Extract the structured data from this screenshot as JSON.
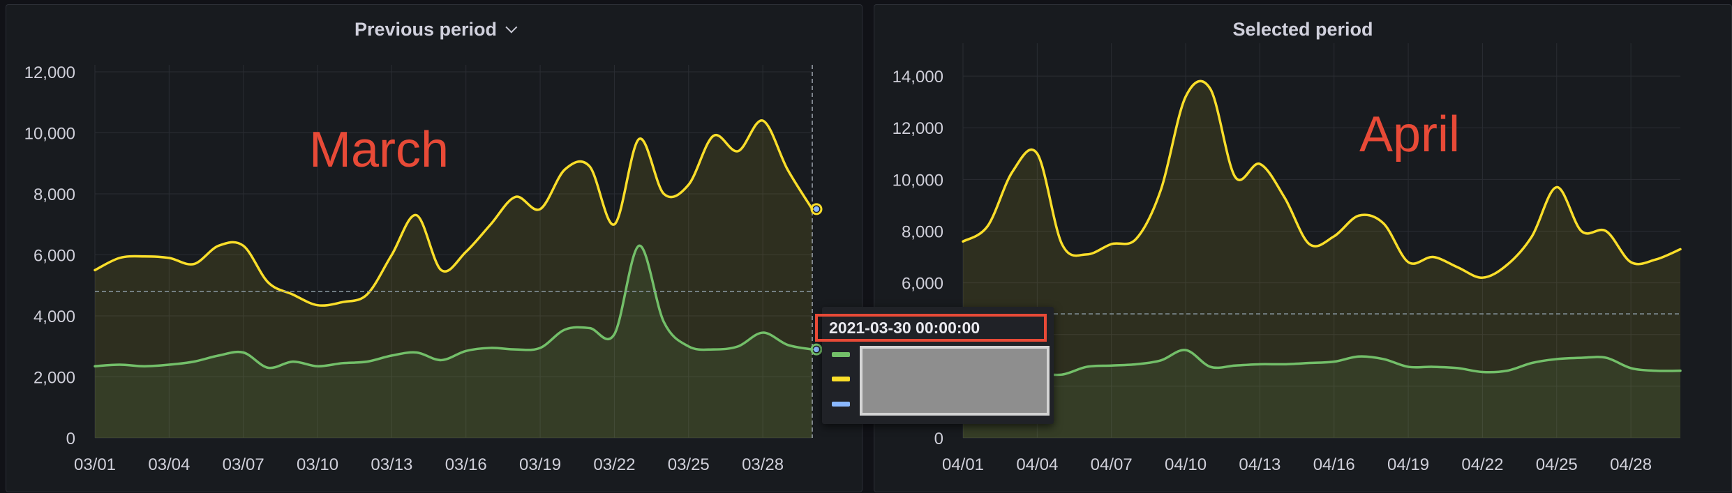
{
  "panels": {
    "left": {
      "title": "Previous period",
      "annotation": "March"
    },
    "right": {
      "title": "Selected period",
      "annotation": "April"
    }
  },
  "tooltip": {
    "time": "2021-03-30 00:00:00",
    "series_colors": [
      "#73bf69",
      "#fade2a",
      "#8ab8ff"
    ]
  },
  "chart_data": [
    {
      "type": "area",
      "title": "Previous period",
      "xlabel": "",
      "ylabel": "",
      "x": [
        "03/01",
        "03/02",
        "03/03",
        "03/04",
        "03/05",
        "03/06",
        "03/07",
        "03/08",
        "03/09",
        "03/10",
        "03/11",
        "03/12",
        "03/13",
        "03/14",
        "03/15",
        "03/16",
        "03/17",
        "03/18",
        "03/19",
        "03/20",
        "03/21",
        "03/22",
        "03/23",
        "03/24",
        "03/25",
        "03/26",
        "03/27",
        "03/28",
        "03/29",
        "03/30"
      ],
      "xticks": [
        "03/01",
        "03/04",
        "03/07",
        "03/10",
        "03/13",
        "03/16",
        "03/19",
        "03/22",
        "03/25",
        "03/28"
      ],
      "yticks": [
        "0",
        "2,000",
        "4,000",
        "6,000",
        "8,000",
        "10,000",
        "12,000"
      ],
      "ylim": [
        0,
        12000
      ],
      "threshold": 4800,
      "series": [
        {
          "color": "#fade2a",
          "values": [
            5500,
            5900,
            5950,
            5900,
            5700,
            6300,
            6300,
            5100,
            4700,
            4350,
            4450,
            4700,
            6000,
            7300,
            5500,
            6100,
            7000,
            7900,
            7500,
            8800,
            8900,
            7000,
            9800,
            8000,
            8300,
            9900,
            9400,
            10400,
            8800,
            7500
          ]
        },
        {
          "color": "#73bf69",
          "values": [
            2350,
            2400,
            2350,
            2400,
            2500,
            2700,
            2800,
            2300,
            2500,
            2350,
            2450,
            2500,
            2700,
            2800,
            2550,
            2850,
            2950,
            2900,
            2950,
            3550,
            3600,
            3400,
            6300,
            3800,
            3000,
            2900,
            3000,
            3450,
            3050,
            2900
          ]
        }
      ]
    },
    {
      "type": "area",
      "title": "Selected period",
      "xlabel": "",
      "ylabel": "",
      "x": [
        "04/01",
        "04/02",
        "04/03",
        "04/04",
        "04/05",
        "04/06",
        "04/07",
        "04/08",
        "04/09",
        "04/10",
        "04/11",
        "04/12",
        "04/13",
        "04/14",
        "04/15",
        "04/16",
        "04/17",
        "04/18",
        "04/19",
        "04/20",
        "04/21",
        "04/22",
        "04/23",
        "04/24",
        "04/25",
        "04/26",
        "04/27",
        "04/28",
        "04/29",
        "04/30"
      ],
      "xticks": [
        "04/01",
        "04/04",
        "04/07",
        "04/10",
        "04/13",
        "04/16",
        "04/19",
        "04/22",
        "04/25",
        "04/28"
      ],
      "yticks": [
        "0",
        "2,000",
        "4,000",
        "6,000",
        "8,000",
        "10,000",
        "12,000",
        "14,000"
      ],
      "ylim": [
        0,
        15000
      ],
      "threshold": 4800,
      "series": [
        {
          "color": "#fade2a",
          "values": [
            7600,
            8200,
            10300,
            11000,
            7500,
            7100,
            7500,
            7700,
            9600,
            13200,
            13500,
            10100,
            10600,
            9300,
            7500,
            7800,
            8600,
            8300,
            6800,
            7000,
            6600,
            6200,
            6700,
            7800,
            9700,
            8000,
            8000,
            6800,
            6900,
            7300
          ]
        },
        {
          "color": "#73bf69",
          "values": [
            2700,
            2600,
            2550,
            2500,
            2450,
            2750,
            2800,
            2850,
            3000,
            3400,
            2750,
            2800,
            2850,
            2850,
            2900,
            2950,
            3150,
            3050,
            2750,
            2750,
            2700,
            2550,
            2600,
            2900,
            3050,
            3100,
            3100,
            2700,
            2600,
            2600
          ]
        }
      ]
    }
  ]
}
